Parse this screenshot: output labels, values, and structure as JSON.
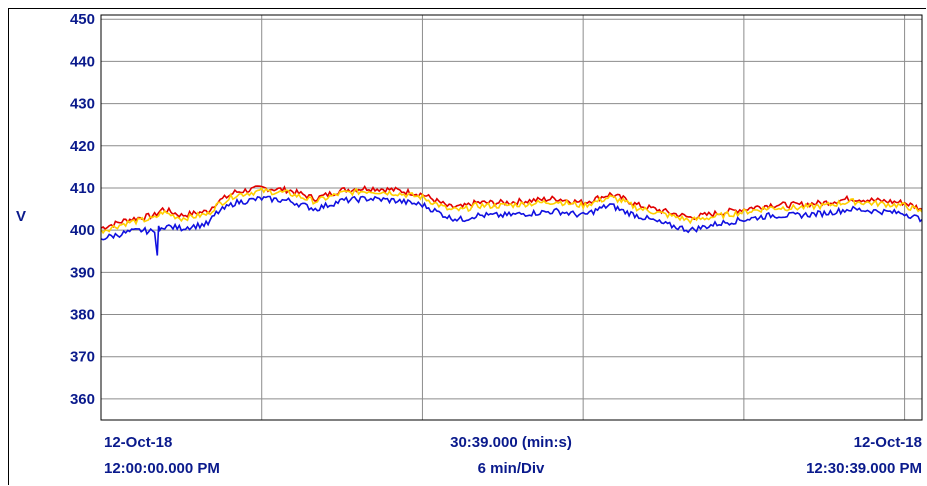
{
  "chart_data": {
    "type": "line",
    "ylabel": "V",
    "ylim": [
      355,
      451
    ],
    "y_ticks": [
      360,
      370,
      380,
      390,
      400,
      410,
      420,
      430,
      440,
      450
    ],
    "x_range_minutes": [
      0,
      30.65
    ],
    "x_divisions_minutes": [
      0,
      6,
      12,
      18,
      24,
      30
    ],
    "grid": true,
    "footer": {
      "start_date": "12-Oct-18",
      "start_time": "12:00:00.000 PM",
      "span": "30:39.000 (min:s)",
      "scale": "6 min/Div",
      "end_date": "12-Oct-18",
      "end_time": "12:30:39.000 PM"
    },
    "series": [
      {
        "color": "#e00000",
        "x": [
          0,
          1,
          2,
          2.3,
          3,
          4,
          4.3,
          5,
          6,
          7,
          8,
          9,
          10,
          11,
          12,
          13,
          13.5,
          14,
          15,
          16,
          17,
          18,
          19,
          19.5,
          20,
          21,
          22,
          23,
          24,
          24.5,
          25,
          26,
          27,
          28,
          29,
          30,
          30.65
        ],
        "values": [
          400.5,
          402.5,
          403.5,
          405,
          403.5,
          404.5,
          406.5,
          409,
          410,
          409.5,
          407.5,
          409.5,
          410,
          409.5,
          408.5,
          405.5,
          405.5,
          406.5,
          406.5,
          407,
          407.5,
          406.5,
          408.5,
          407.5,
          406,
          404.5,
          403,
          404,
          405,
          405.5,
          406,
          406,
          406.5,
          407.5,
          407,
          406.5,
          405
        ]
      },
      {
        "color": "#ffd000",
        "x": [
          0,
          1,
          2,
          2.3,
          3,
          4,
          4.3,
          5,
          6,
          7,
          8,
          9,
          10,
          11,
          12,
          13,
          13.5,
          14,
          15,
          16,
          17,
          18,
          19,
          19.5,
          20,
          21,
          22,
          23,
          24,
          24.5,
          25,
          26,
          27,
          28,
          29,
          30,
          30.65
        ],
        "values": [
          399.8,
          401.8,
          402.8,
          404.3,
          402.8,
          403.8,
          405.8,
          408.3,
          409.3,
          408.8,
          406.8,
          408.8,
          409.3,
          408.8,
          407.8,
          404.8,
          404.8,
          405.8,
          405.8,
          406.3,
          406.8,
          405.8,
          407.8,
          406.8,
          405.3,
          403.8,
          402.3,
          403.3,
          404.3,
          404.8,
          405.3,
          405.3,
          405.8,
          406.8,
          406.3,
          405.8,
          404.3
        ]
      },
      {
        "color": "#1010e0",
        "x": [
          0,
          1,
          1.5,
          2,
          2.1,
          2.15,
          2.2,
          2.3,
          3,
          4,
          4.3,
          5,
          6,
          7,
          8,
          9,
          10,
          11,
          12,
          13,
          13.5,
          14,
          15,
          16,
          17,
          18,
          19,
          19.5,
          20,
          21,
          22,
          23,
          24,
          24.5,
          25,
          26,
          27,
          28,
          29,
          30,
          30.65
        ],
        "values": [
          398,
          399.5,
          400,
          399.5,
          394,
          401,
          400,
          401,
          400.5,
          401.5,
          404,
          406.5,
          407.5,
          407,
          405,
          407,
          407.5,
          407,
          406,
          403,
          402.5,
          403.5,
          403.5,
          404,
          404.5,
          403.5,
          406,
          404.5,
          403.5,
          401.5,
          400,
          401.5,
          402.5,
          403,
          403.5,
          403.5,
          404,
          405,
          404.5,
          404,
          402.5
        ]
      }
    ]
  }
}
